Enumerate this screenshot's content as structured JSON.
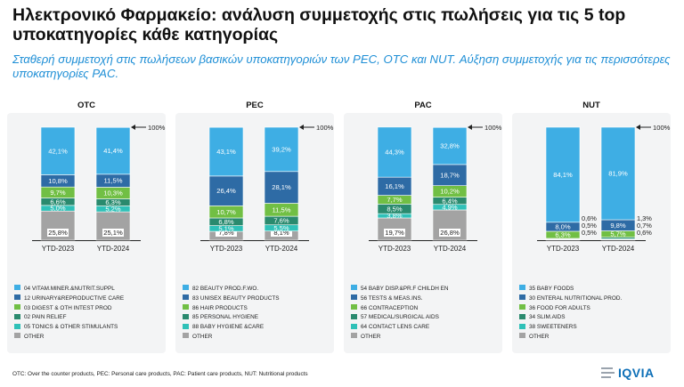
{
  "title": "Ηλεκτρονικό Φαρμακείο: ανάλυση συμμετοχής στις πωλήσεις για τις 5 top υποκατηγορίες κάθε κατηγορίας",
  "subtitle": "Σταθερή συμμετοχή στις πωλήσεων βασικών υποκατηγοριών των PEC, OTC και NUT. Αύξηση συμμετοχής για τις περισσότερες υποκατηγορίες PAC.",
  "footnote": "OTC: Over the counter products, PEC: Personal care products, PAC: Patient care products, NUT: Nutritional products",
  "logo": "IQVIA",
  "colors": [
    "#a3a3a3",
    "#2fc1b8",
    "#71bf44",
    "#2a8a6e",
    "#2e6ba5",
    "#3eaee4"
  ],
  "chart_data": [
    {
      "type": "bar",
      "stacked": true,
      "title": "OTC",
      "categories": [
        "YTD-2023",
        "YTD-2024"
      ],
      "ylim": [
        0,
        100
      ],
      "top_label": "100%",
      "series": [
        {
          "name": "OTHER",
          "color": "#a3a3a3",
          "values": [
            25.8,
            25.1
          ],
          "labels": [
            "25,8%",
            "25,1%"
          ]
        },
        {
          "name": "05 TONICS & OTHER STIMULANTS",
          "color": "#2fc1b8",
          "values": [
            5.0,
            5.2
          ],
          "labels": [
            "5,0%",
            "5,2%"
          ]
        },
        {
          "name": "02 PAIN RELIEF",
          "color": "#2a8a6e",
          "values": [
            6.6,
            6.3
          ],
          "labels": [
            "6,6%",
            "6,3%"
          ]
        },
        {
          "name": "03 DIGEST & OTH INTEST PROD",
          "color": "#71bf44",
          "values": [
            9.7,
            10.3
          ],
          "labels": [
            "9,7%",
            "10,3%"
          ]
        },
        {
          "name": "12 URINARY&REPRODUCTIVE CARE",
          "color": "#2e6ba5",
          "values": [
            10.8,
            11.5
          ],
          "labels": [
            "10,8%",
            "11,5%"
          ]
        },
        {
          "name": "04 VITAM.MINER.&NUTRIT.SUPPL",
          "color": "#3eaee4",
          "values": [
            42.1,
            41.4
          ],
          "labels": [
            "42,1%",
            "41,4%"
          ]
        }
      ]
    },
    {
      "type": "bar",
      "stacked": true,
      "title": "PEC",
      "categories": [
        "YTD-2023",
        "YTD-2024"
      ],
      "ylim": [
        0,
        100
      ],
      "top_label": "100%",
      "series": [
        {
          "name": "OTHER",
          "color": "#a3a3a3",
          "values": [
            7.8,
            8.1
          ],
          "labels": [
            "7,8%",
            "8,1%"
          ]
        },
        {
          "name": "88 BABY HYGIENE &CARE",
          "color": "#2fc1b8",
          "values": [
            5.1,
            5.5
          ],
          "labels": [
            "5,1%",
            "5,5%"
          ]
        },
        {
          "name": "85 PERSONAL HYGIENE",
          "color": "#2a8a6e",
          "values": [
            6.8,
            7.6
          ],
          "labels": [
            "6,8%",
            "7,6%"
          ]
        },
        {
          "name": "86 HAIR PRODUCTS",
          "color": "#71bf44",
          "values": [
            10.7,
            11.5
          ],
          "labels": [
            "10,7%",
            "11,5%"
          ]
        },
        {
          "name": "83 UNISEX BEAUTY PRODUCTS",
          "color": "#2e6ba5",
          "values": [
            26.4,
            28.1
          ],
          "labels": [
            "26,4%",
            "28,1%"
          ]
        },
        {
          "name": "82 BEAUTY PROD.F.WO.",
          "color": "#3eaee4",
          "values": [
            43.1,
            39.2
          ],
          "labels": [
            "43,1%",
            "39,2%"
          ]
        }
      ]
    },
    {
      "type": "bar",
      "stacked": true,
      "title": "PAC",
      "categories": [
        "YTD-2023",
        "YTD-2024"
      ],
      "ylim": [
        0,
        100
      ],
      "top_label": "100%",
      "series": [
        {
          "name": "OTHER",
          "color": "#a3a3a3",
          "values": [
            19.7,
            26.8
          ],
          "labels": [
            "19,7%",
            "26,8%"
          ]
        },
        {
          "name": "64 CONTACT LENS CARE",
          "color": "#2fc1b8",
          "values": [
            3.8,
            4.9
          ],
          "labels": [
            "3,8%",
            "4,9%"
          ]
        },
        {
          "name": "57 MEDICAL/SURGICAL AIDS",
          "color": "#2a8a6e",
          "values": [
            8.5,
            6.4
          ],
          "labels": [
            "8,5%",
            "6,4%"
          ]
        },
        {
          "name": "66 CONTRACEPTION",
          "color": "#71bf44",
          "values": [
            7.7,
            10.2
          ],
          "labels": [
            "7,7%",
            "10,2%"
          ]
        },
        {
          "name": "56 TESTS & MEAS.INS.",
          "color": "#2e6ba5",
          "values": [
            16.1,
            18.7
          ],
          "labels": [
            "16,1%",
            "18,7%"
          ]
        },
        {
          "name": "54 BABY DISP.&PR.F CHILDH EN",
          "color": "#3eaee4",
          "values": [
            44.3,
            32.8
          ],
          "labels": [
            "44,3%",
            "32,8%"
          ]
        }
      ]
    },
    {
      "type": "bar",
      "stacked": true,
      "title": "NUT",
      "categories": [
        "YTD-2023",
        "YTD-2024"
      ],
      "ylim": [
        0,
        100
      ],
      "top_label": "100%",
      "series": [
        {
          "name": "OTHER",
          "color": "#a3a3a3",
          "values": [
            0.5,
            0.6
          ],
          "labels": [
            "0,5%",
            "0,6%"
          ]
        },
        {
          "name": "38 SWEETENERS",
          "color": "#2fc1b8",
          "values": [
            0.5,
            0.7
          ],
          "labels": [
            "0,5%",
            "0,7%"
          ]
        },
        {
          "name": "34 SLIM.AIDS",
          "color": "#2a8a6e",
          "values": [
            0.6,
            1.3
          ],
          "labels": [
            "0,6%",
            "1,3%"
          ]
        },
        {
          "name": "36 FOOD FOR ADULTS",
          "color": "#71bf44",
          "values": [
            6.3,
            5.7
          ],
          "labels": [
            "6,3%",
            "5,7%"
          ]
        },
        {
          "name": "30 ENTERAL NUTRITIONAL PROD.",
          "color": "#2e6ba5",
          "values": [
            8.0,
            9.8
          ],
          "labels": [
            "8,0%",
            "9,8%"
          ]
        },
        {
          "name": "35 BABY FOODS",
          "color": "#3eaee4",
          "values": [
            84.1,
            81.9
          ],
          "labels": [
            "84,1%",
            "81,9%"
          ]
        }
      ]
    }
  ]
}
